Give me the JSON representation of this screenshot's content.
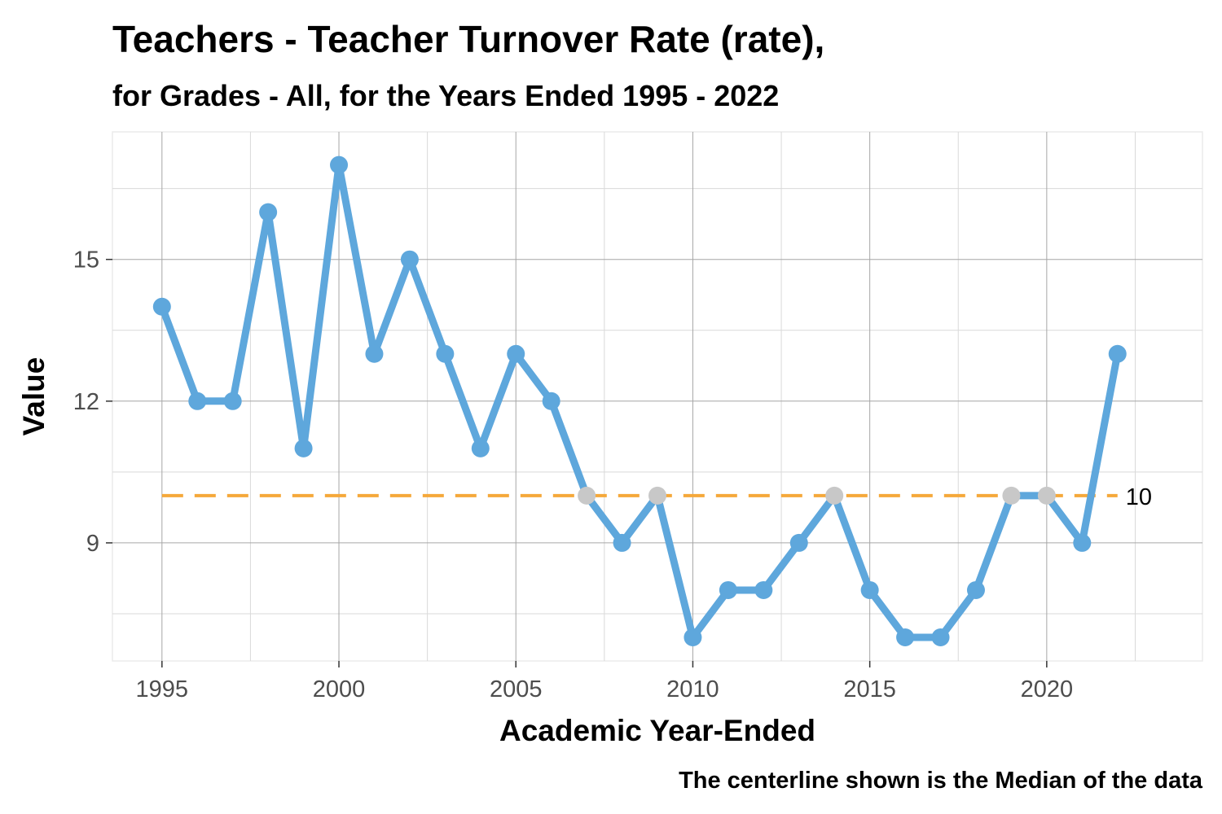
{
  "chart_data": {
    "type": "line",
    "title": "Teachers - Teacher Turnover Rate (rate),",
    "subtitle": "for Grades - All, for the Years Ended 1995  -  2022",
    "xlabel": "Academic Year-Ended",
    "ylabel": "Value",
    "caption": "The centerline shown is the Median of the data",
    "xlim": [
      1993.6,
      2024.4
    ],
    "ylim": [
      6.5,
      17.7
    ],
    "x_ticks": [
      1995,
      2000,
      2005,
      2010,
      2015,
      2020
    ],
    "x_tick_labels": [
      "1995",
      "2000",
      "2005",
      "2010",
      "2015",
      "2020"
    ],
    "y_ticks": [
      9,
      12,
      15
    ],
    "y_tick_labels": [
      "9",
      "12",
      "15"
    ],
    "grid": true,
    "series": [
      {
        "x": [
          1995,
          1996,
          1997,
          1998,
          1999,
          2000,
          2001,
          2002,
          2003,
          2004,
          2005,
          2006,
          2007,
          2008,
          2009,
          2010,
          2011,
          2012,
          2013,
          2014,
          2015,
          2016,
          2017,
          2018,
          2019,
          2020,
          2021,
          2022
        ],
        "values": [
          14,
          12,
          12,
          16,
          11,
          17,
          13,
          15,
          13,
          11,
          13,
          12,
          10,
          9,
          10,
          7,
          8,
          8,
          9,
          10,
          8,
          7,
          7,
          8,
          10,
          10,
          9,
          13
        ],
        "color": "#5ea7dc"
      }
    ],
    "median": {
      "value": 10,
      "label": "10",
      "color": "#f5a83a",
      "style": "dashed"
    },
    "on_median_point_color": "#c8c8c8"
  }
}
